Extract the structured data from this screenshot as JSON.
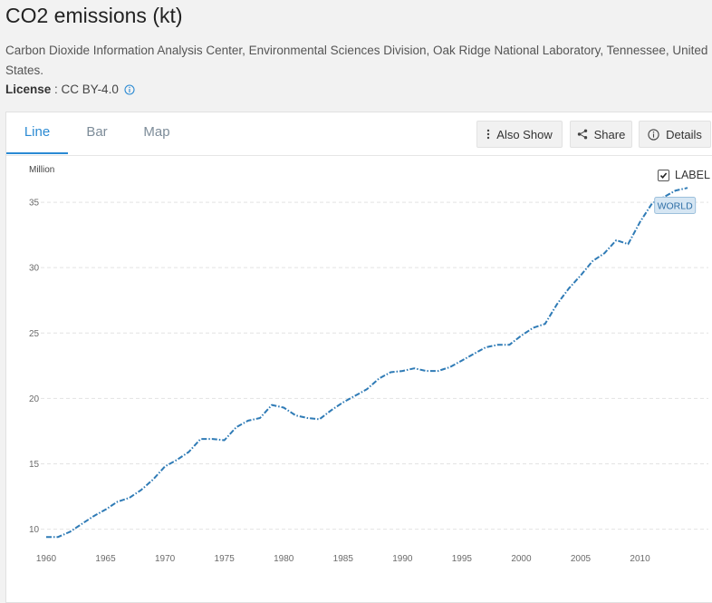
{
  "header": {
    "title": "CO2 emissions (kt)",
    "source": "Carbon Dioxide Information Analysis Center, Environmental Sciences Division, Oak Ridge National Laboratory, Tennessee, United States.",
    "license_label": "License",
    "license_sep": " : ",
    "license_value": "CC BY-4.0"
  },
  "tabs": [
    {
      "label": "Line",
      "active": true
    },
    {
      "label": "Bar",
      "active": false
    },
    {
      "label": "Map",
      "active": false
    }
  ],
  "toolbar": {
    "also_show_label": "Also Show",
    "share_label": "Share",
    "details_label": "Details"
  },
  "label_toggle": {
    "text": "LABEL",
    "checked": true
  },
  "accent_color": "#2b8ad3",
  "line_color": "#2f7bb6",
  "chart_data": {
    "type": "line",
    "unit_label": "Million",
    "x": [
      1960,
      1961,
      1962,
      1963,
      1964,
      1965,
      1966,
      1967,
      1968,
      1969,
      1970,
      1971,
      1972,
      1973,
      1974,
      1975,
      1976,
      1977,
      1978,
      1979,
      1980,
      1981,
      1982,
      1983,
      1984,
      1985,
      1986,
      1987,
      1988,
      1989,
      1990,
      1991,
      1992,
      1993,
      1994,
      1995,
      1996,
      1997,
      1998,
      1999,
      2000,
      2001,
      2002,
      2003,
      2004,
      2005,
      2006,
      2007,
      2008,
      2009,
      2010,
      2011,
      2012,
      2013,
      2014
    ],
    "series": [
      {
        "name": "WORLD",
        "values": [
          9.4,
          9.4,
          9.8,
          10.4,
          11.0,
          11.5,
          12.1,
          12.4,
          13.0,
          13.8,
          14.8,
          15.3,
          15.9,
          16.9,
          16.9,
          16.8,
          17.8,
          18.3,
          18.5,
          19.5,
          19.3,
          18.7,
          18.5,
          18.4,
          19.1,
          19.7,
          20.2,
          20.7,
          21.5,
          22.0,
          22.1,
          22.3,
          22.1,
          22.1,
          22.4,
          22.9,
          23.4,
          23.9,
          24.1,
          24.1,
          24.8,
          25.4,
          25.7,
          27.2,
          28.4,
          29.4,
          30.5,
          31.1,
          32.1,
          31.8,
          33.5,
          34.9,
          35.4,
          35.9,
          36.1
        ]
      }
    ],
    "xticks": [
      1960,
      1965,
      1970,
      1975,
      1980,
      1985,
      1990,
      1995,
      2000,
      2005,
      2010
    ],
    "yticks": [
      10,
      15,
      20,
      25,
      30,
      35
    ],
    "xlim": [
      1960,
      2014
    ],
    "ylim": [
      9.0,
      36.6
    ],
    "grid": true,
    "legend": "label at line end"
  }
}
